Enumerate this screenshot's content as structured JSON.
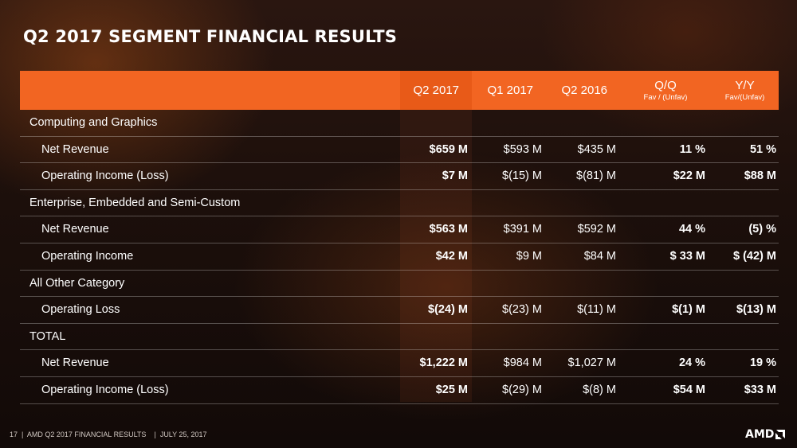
{
  "title": "Q2 2017 SEGMENT FINANCIAL RESULTS",
  "columns": [
    {
      "label": "Q2 2017",
      "sub": ""
    },
    {
      "label": "Q1 2017",
      "sub": ""
    },
    {
      "label": "Q2 2016",
      "sub": ""
    },
    {
      "label": "Q/Q",
      "sub": "Fav / (Unfav)"
    },
    {
      "label": "Y/Y",
      "sub": "Fav/(Unfav)"
    }
  ],
  "rows": [
    {
      "label": "Computing and Graphics"
    },
    {
      "label": "Net Revenue",
      "values": [
        "$659 M",
        "$593 M",
        "$435 M",
        "11 %",
        "51 %"
      ]
    },
    {
      "label": "Operating Income (Loss)",
      "values": [
        "$7 M",
        "$(15) M",
        "$(81) M",
        "$22 M",
        "$88 M"
      ]
    },
    {
      "label": "Enterprise, Embedded and Semi-Custom"
    },
    {
      "label": "Net Revenue",
      "values": [
        "$563 M",
        "$391 M",
        "$592 M",
        "44 %",
        "(5) %"
      ]
    },
    {
      "label": "Operating Income",
      "values": [
        "$42 M",
        "$9 M",
        "$84 M",
        "$ 33 M",
        "$ (42) M"
      ]
    },
    {
      "label": "All Other Category"
    },
    {
      "label": "Operating Loss",
      "values": [
        "$(24) M",
        "$(23) M",
        "$(11) M",
        "$(1) M",
        "$(13) M"
      ]
    },
    {
      "label": "TOTAL"
    },
    {
      "label": "Net Revenue",
      "values": [
        "$1,222 M",
        "$984 M",
        "$1,027 M",
        "24 %",
        "19 %"
      ]
    },
    {
      "label": "Operating Income (Loss)",
      "values": [
        "$25 M",
        "$(29) M",
        "$(8) M",
        "$54 M",
        "$33 M"
      ]
    }
  ],
  "footer": {
    "page": "17",
    "text": "AMD Q2 2017 FINANCIAL RESULTS",
    "date": "JULY 25, 2017"
  },
  "logo": "AMD",
  "colors": {
    "header": "#f26522",
    "background": "#1c0f0b"
  }
}
